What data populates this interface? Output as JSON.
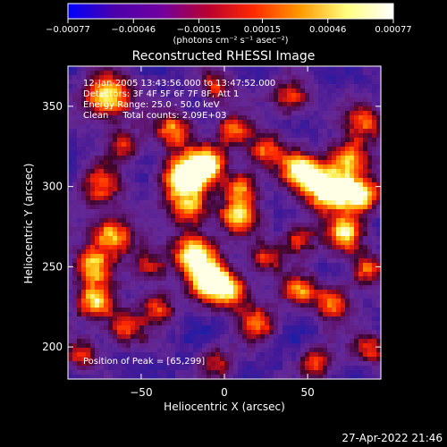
{
  "chart_data": {
    "type": "heatmap",
    "title": "Reconstructed RHESSI Image",
    "xlabel": "Heliocentric X (arcsec)",
    "ylabel": "Heliocentric Y (arcsec)",
    "xlim": [
      -94,
      94
    ],
    "ylim": [
      180,
      375
    ],
    "xticks": [
      -50,
      0,
      50
    ],
    "xtick_labels": [
      "−50",
      "0",
      "50"
    ],
    "yticks": [
      200,
      250,
      300,
      350
    ],
    "ytick_labels": [
      "200",
      "250",
      "300",
      "350"
    ],
    "colorbar": {
      "min": -0.00077,
      "max": 0.00077,
      "ticks": [
        -0.00077,
        -0.00046,
        -0.00015,
        0.00015,
        0.00046,
        0.00077
      ],
      "tick_labels": [
        "−0.00077",
        "−0.00046",
        "−0.00015",
        "0.00015",
        "0.00046",
        "0.00077"
      ],
      "unit_label": "(photons cm⁻² s⁻¹ asec⁻²)",
      "colors": [
        "#0000ff",
        "#4b00aa",
        "#7000a0",
        "#b80030",
        "#ff2a00",
        "#ff9a00",
        "#ffff80",
        "#ffffff"
      ]
    },
    "annotations": {
      "time_range": "12-Jan-2005 13:43:56.000 to 13:47:52.000",
      "detectors": "Detectors: 3F 4F 5F 6F 7F 8F, Att 1",
      "energy": "Energy Range: 25.0 - 50.0 keV",
      "method": "Clean     Total counts: 2.09E+03",
      "peak": "Position of Peak = [65,299]"
    },
    "peak": {
      "x": 65,
      "y": 299
    },
    "blobs": [
      {
        "x": -70,
        "y": 355,
        "a": 0.85,
        "w": 10
      },
      {
        "x": -75,
        "y": 300,
        "a": 0.5,
        "w": 9
      },
      {
        "x": -68,
        "y": 270,
        "a": 0.75,
        "w": 9
      },
      {
        "x": -80,
        "y": 250,
        "a": 0.65,
        "w": 8
      },
      {
        "x": -78,
        "y": 228,
        "a": 0.7,
        "w": 8
      },
      {
        "x": -60,
        "y": 212,
        "a": 0.55,
        "w": 8
      },
      {
        "x": -45,
        "y": 250,
        "a": 0.45,
        "w": 8
      },
      {
        "x": -30,
        "y": 335,
        "a": 0.6,
        "w": 8
      },
      {
        "x": -25,
        "y": 305,
        "a": 0.95,
        "w": 10
      },
      {
        "x": -10,
        "y": 315,
        "a": 0.7,
        "w": 8
      },
      {
        "x": -20,
        "y": 285,
        "a": 0.55,
        "w": 8
      },
      {
        "x": 5,
        "y": 335,
        "a": 0.55,
        "w": 7
      },
      {
        "x": 10,
        "y": 300,
        "a": 0.6,
        "w": 7
      },
      {
        "x": 8,
        "y": 282,
        "a": 0.7,
        "w": 8
      },
      {
        "x": 25,
        "y": 322,
        "a": 0.6,
        "w": 8
      },
      {
        "x": 45,
        "y": 310,
        "a": 0.7,
        "w": 8
      },
      {
        "x": 62,
        "y": 299,
        "a": 1.0,
        "w": 10
      },
      {
        "x": 75,
        "y": 318,
        "a": 0.65,
        "w": 8
      },
      {
        "x": 82,
        "y": 295,
        "a": 0.8,
        "w": 8
      },
      {
        "x": 72,
        "y": 270,
        "a": 0.7,
        "w": 8
      },
      {
        "x": 45,
        "y": 268,
        "a": 0.55,
        "w": 7
      },
      {
        "x": -18,
        "y": 258,
        "a": 0.85,
        "w": 9
      },
      {
        "x": -8,
        "y": 240,
        "a": 0.8,
        "w": 9
      },
      {
        "x": 5,
        "y": 235,
        "a": 0.6,
        "w": 8
      },
      {
        "x": -40,
        "y": 225,
        "a": 0.5,
        "w": 7
      },
      {
        "x": 20,
        "y": 215,
        "a": 0.55,
        "w": 8
      },
      {
        "x": 45,
        "y": 235,
        "a": 0.55,
        "w": 7
      },
      {
        "x": 65,
        "y": 228,
        "a": 0.6,
        "w": 8
      },
      {
        "x": 85,
        "y": 248,
        "a": 0.55,
        "w": 7
      },
      {
        "x": 88,
        "y": 200,
        "a": 0.55,
        "w": 7
      },
      {
        "x": 55,
        "y": 190,
        "a": 0.5,
        "w": 7
      },
      {
        "x": -5,
        "y": 190,
        "a": 0.45,
        "w": 7
      },
      {
        "x": 85,
        "y": 340,
        "a": 0.55,
        "w": 8
      },
      {
        "x": 40,
        "y": 355,
        "a": 0.55,
        "w": 8
      },
      {
        "x": -5,
        "y": 362,
        "a": 0.5,
        "w": 7
      },
      {
        "x": -60,
        "y": 325,
        "a": 0.45,
        "w": 7
      },
      {
        "x": 25,
        "y": 255,
        "a": 0.5,
        "w": 7
      },
      {
        "x": -85,
        "y": 195,
        "a": 0.5,
        "w": 7
      }
    ]
  },
  "footer": {
    "timestamp": "27-Apr-2022 21:46"
  }
}
